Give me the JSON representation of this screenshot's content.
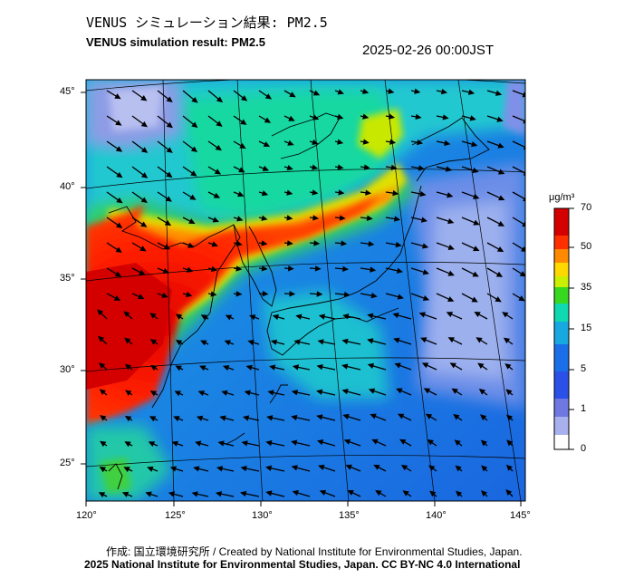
{
  "title_jp": "VENUS シミュレーション結果: PM2.5",
  "title_en": "VENUS simulation result: PM2.5",
  "timestamp": "2025-02-26 00:00JST",
  "credit": "作成: 国立環境研究所 / Created by National Institute for Environmental Studies, Japan.",
  "license": "2025 National Institute for Environmental Studies, Japan. CC BY-NC 4.0 International",
  "lat_labels": [
    "45°",
    "40°",
    "35°",
    "30°",
    "25°"
  ],
  "lon_labels": [
    "120°",
    "125°",
    "130°",
    "135°",
    "140°",
    "145°"
  ],
  "colorbar": {
    "unit": "μg/m³",
    "ticks": [
      "70",
      "50",
      "35",
      "15",
      "5",
      "1",
      "0"
    ],
    "colors": [
      "#d40000",
      "#ff3000",
      "#ff8a00",
      "#ffd800",
      "#c8f000",
      "#38d820",
      "#10d8b0",
      "#18a8e0",
      "#1a6ee8",
      "#6e78e0",
      "#c8c8f0",
      "#ffffff"
    ]
  }
}
